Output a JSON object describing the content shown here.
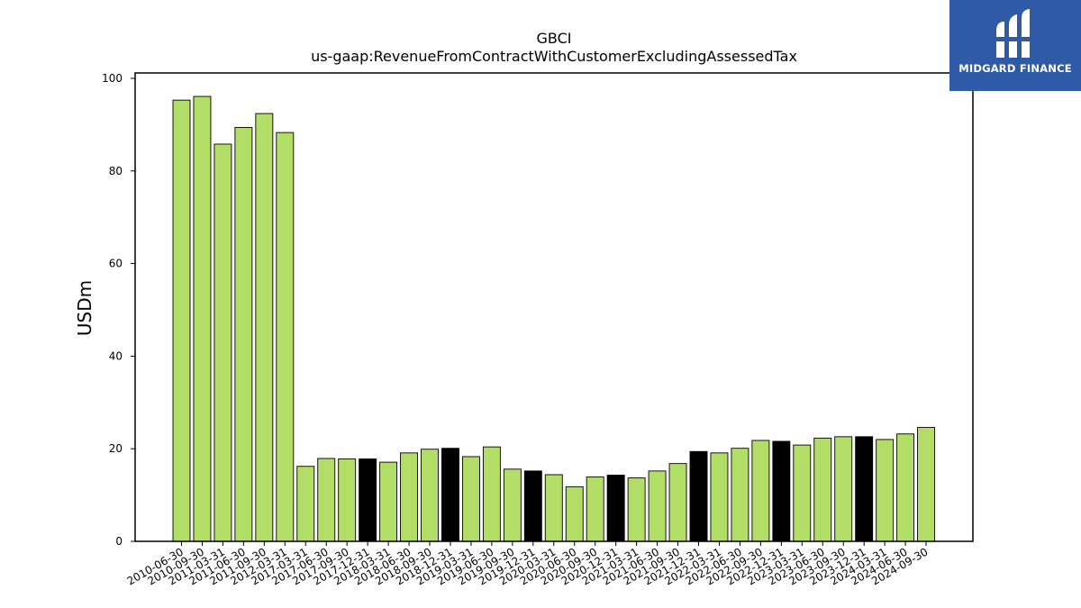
{
  "chart_data": {
    "type": "bar",
    "title": "GBCI",
    "subtitle": "us-gaap:RevenueFromContractWithCustomerExcludingAssessedTax",
    "xlabel": "",
    "ylabel": "USDm",
    "ylim": [
      0,
      100
    ],
    "yticks": [
      0,
      20,
      40,
      60,
      80,
      100
    ],
    "grid": false,
    "colors": {
      "default": "#b2dd66",
      "highlight": "#000000",
      "edge": "#000000"
    },
    "categories": [
      "2010-06-30",
      "2010-09-30",
      "2011-03-31",
      "2011-06-30",
      "2011-09-30",
      "2012-03-31",
      "2017-03-31",
      "2017-06-30",
      "2017-09-30",
      "2017-12-31",
      "2018-03-31",
      "2018-06-30",
      "2018-09-30",
      "2018-12-31",
      "2019-03-31",
      "2019-06-30",
      "2019-09-30",
      "2019-12-31",
      "2020-03-31",
      "2020-06-30",
      "2020-09-30",
      "2020-12-31",
      "2021-03-31",
      "2021-06-30",
      "2021-09-30",
      "2021-12-31",
      "2022-03-31",
      "2022-06-30",
      "2022-09-30",
      "2022-12-31",
      "2023-03-31",
      "2023-06-30",
      "2023-09-30",
      "2023-12-31",
      "2024-03-31",
      "2024-06-30",
      "2024-09-30"
    ],
    "values": [
      95.3,
      96.1,
      85.8,
      89.4,
      92.4,
      88.3,
      16.2,
      17.9,
      17.8,
      17.8,
      17.1,
      19.1,
      19.9,
      20.1,
      18.3,
      20.4,
      15.6,
      15.2,
      14.4,
      11.8,
      13.9,
      14.3,
      13.7,
      15.2,
      16.8,
      19.4,
      19.1,
      20.1,
      21.8,
      21.6,
      20.8,
      22.3,
      22.6,
      22.6,
      22.0,
      23.2,
      24.6
    ],
    "highlighted": [
      false,
      false,
      false,
      false,
      false,
      false,
      false,
      false,
      false,
      true,
      false,
      false,
      false,
      true,
      false,
      false,
      false,
      true,
      false,
      false,
      false,
      true,
      false,
      false,
      false,
      true,
      false,
      false,
      false,
      true,
      false,
      false,
      false,
      true,
      false,
      false,
      false
    ]
  },
  "logo": {
    "text": "MIDGARD FINANCE",
    "icon": "midgard-logo-icon"
  }
}
